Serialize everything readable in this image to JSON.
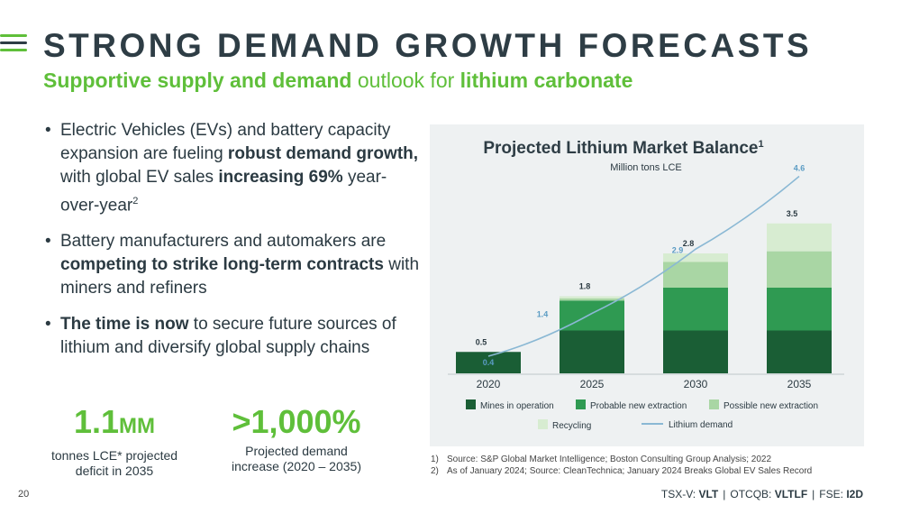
{
  "page": {
    "title": "STRONG DEMAND GROWTH FORECASTS",
    "subtitle": {
      "p1": "Supportive supply and demand",
      "p2": " outlook for ",
      "p3": "lithium carbonate"
    },
    "colors": {
      "accent_green": "#5fbf3a",
      "dark_text": "#2e3d45"
    }
  },
  "bullets": [
    {
      "t1": "Electric Vehicles (EVs) and battery capacity expansion are fueling ",
      "b1": "robust demand growth,",
      "t2": " with global EV sales ",
      "b2": "increasing 69%",
      "t3": " year-over-year",
      "sup": "2"
    },
    {
      "t1": "Battery manufacturers and automakers are ",
      "b1": "competing to strike long-term contracts",
      "t2": " with miners and refiners"
    },
    {
      "b1": "The time is now",
      "t1": " to secure future sources of lithium and diversify global supply chains"
    }
  ],
  "stats": [
    {
      "value": "1.1",
      "unit": "MM",
      "label_line1": "tonnes LCE* projected",
      "label_line2": "deficit in 2035"
    },
    {
      "value": ">1,000%",
      "label_line1": "Projected demand",
      "label_line2": "increase (2020 – 2035)"
    }
  ],
  "chart_data": {
    "type": "bar",
    "title": "Projected Lithium Market Balance",
    "title_sup": "1",
    "subtitle": "Million tons LCE",
    "categories": [
      "2020",
      "2025",
      "2030",
      "2035"
    ],
    "stacked": true,
    "ylim": [
      0,
      4.8
    ],
    "series": [
      {
        "name": "Mines in operation",
        "color": "#1a5e35",
        "values": [
          0.5,
          1.0,
          1.0,
          1.0
        ]
      },
      {
        "name": "Probable new extraction",
        "color": "#2f9a52",
        "values": [
          0,
          0.7,
          1.0,
          1.0
        ]
      },
      {
        "name": "Possible new extraction",
        "color": "#a9d6a4",
        "values": [
          0,
          0.05,
          0.6,
          0.85
        ]
      },
      {
        "name": "Recycling",
        "color": "#d7ecd1",
        "values": [
          0,
          0.05,
          0.2,
          0.65
        ]
      }
    ],
    "bar_totals": [
      "0.5",
      "1.8",
      "2.8",
      "3.5"
    ],
    "line": {
      "name": "Lithium demand",
      "color": "#8ab8d4",
      "values": [
        0.4,
        1.4,
        2.9,
        4.6
      ],
      "labels": [
        "0.4",
        "1.4",
        "2.9",
        "4.6"
      ]
    }
  },
  "footnotes": [
    {
      "num": "1)",
      "text": "Source: S&P Global Market Intelligence; Boston Consulting Group Analysis; 2022"
    },
    {
      "num": "2)",
      "text": "As of January 2024; Source: CleanTechnica; January 2024 Breaks Global EV Sales Record"
    }
  ],
  "footer": {
    "page_number": "20",
    "tickers": [
      {
        "exchange": "TSX-V:",
        "symbol": "VLT"
      },
      {
        "exchange": "OTCQB:",
        "symbol": "VLTLF"
      },
      {
        "exchange": "FSE:",
        "symbol": "I2D"
      }
    ],
    "separator": "|"
  }
}
